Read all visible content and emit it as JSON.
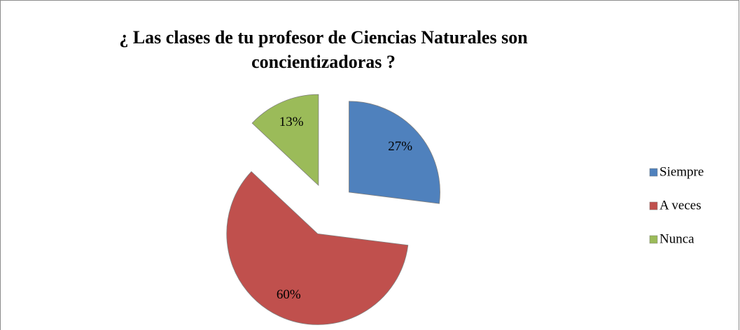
{
  "chart_data": {
    "type": "pie",
    "title": "¿ Las clases de tu profesor de Ciencias Naturales son concientizadoras ?",
    "categories": [
      "Siempre",
      "A veces",
      "Nunca"
    ],
    "values": [
      27,
      60,
      13
    ],
    "value_labels": [
      "27%",
      "60%",
      "13%"
    ],
    "colors": [
      "#4f81bd",
      "#c0504d",
      "#9bbb59"
    ],
    "exploded": true,
    "legend": "right"
  }
}
